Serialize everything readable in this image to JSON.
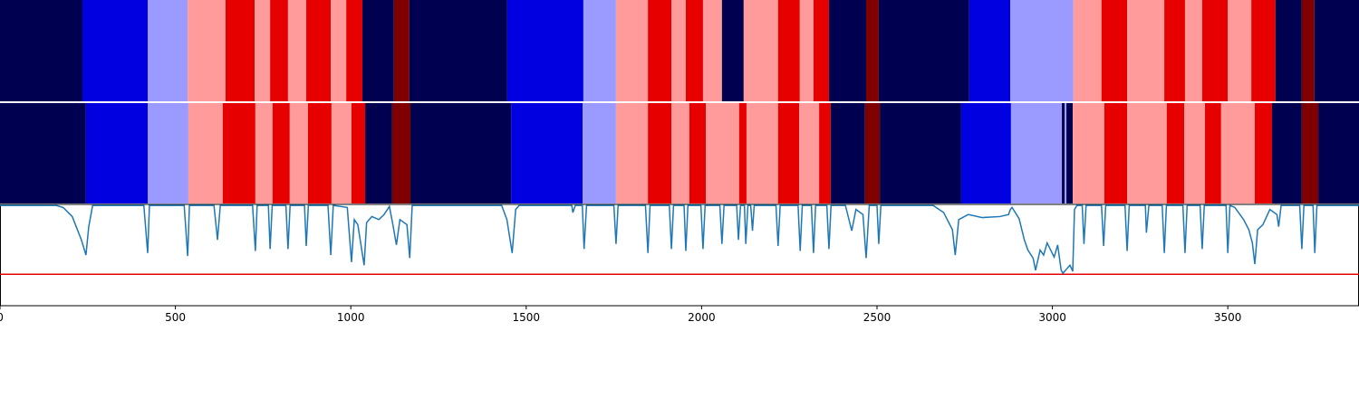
{
  "chart_data": {
    "type": "segmentation",
    "xlim": [
      0,
      3874
    ],
    "xticks": [
      0,
      500,
      1000,
      1500,
      2000,
      2500,
      3000,
      3500
    ],
    "rows": [
      {
        "starts": [
          0,
          235,
          421,
          535,
          643,
          726,
          770,
          821,
          873,
          943,
          987,
          1033,
          1123,
          1167,
          1446,
          1663,
          1756,
          1847,
          1914,
          1955,
          2004,
          2058,
          2120,
          2218,
          2280,
          2319,
          2363,
          2469,
          2505,
          2763,
          2880,
          3060,
          3140,
          3213,
          3319,
          3378,
          3427,
          3500,
          3567,
          3636,
          3711,
          3747
        ],
        "colors": [
          "#000050",
          "#0000e0",
          "#9b9bff",
          "#ff9b9b",
          "#e60000",
          "#ff9b9b",
          "#e60000",
          "#ff9b9b",
          "#e60000",
          "#ff9b9b",
          "#e60000",
          "#000050",
          "#800000",
          "#000050",
          "#0000e0",
          "#9b9bff",
          "#ff9b9b",
          "#e60000",
          "#ff9b9b",
          "#e60000",
          "#ff9b9b",
          "#000050",
          "#ff9b9b",
          "#e60000",
          "#ff9b9b",
          "#e60000",
          "#000050",
          "#800000",
          "#000050",
          "#0000e0",
          "#9b9bff",
          "#ff9b9b",
          "#e60000",
          "#ff9b9b",
          "#e60000",
          "#ff9b9b",
          "#e60000",
          "#ff9b9b",
          "#e60000",
          "#000050",
          "#800000",
          "#000050"
        ]
      },
      {
        "starts": [
          0,
          245,
          421,
          537,
          635,
          728,
          777,
          826,
          878,
          945,
          1002,
          1041,
          1118,
          1170,
          1457,
          1661,
          1756,
          1847,
          1914,
          1965,
          2012,
          2107,
          2128,
          2218,
          2278,
          2335,
          2368,
          2466,
          2508,
          2740,
          2882,
          3027,
          3035,
          3040,
          3058,
          3148,
          3213,
          3326,
          3376,
          3435,
          3481,
          3577,
          3626,
          3711,
          3758
        ],
        "colors": [
          "#000050",
          "#0000e0",
          "#9b9bff",
          "#ff9b9b",
          "#e60000",
          "#ff9b9b",
          "#e60000",
          "#ff9b9b",
          "#e60000",
          "#ff9b9b",
          "#e60000",
          "#000050",
          "#800000",
          "#000050",
          "#0000e0",
          "#9b9bff",
          "#ff9b9b",
          "#e60000",
          "#ff9b9b",
          "#e60000",
          "#ff9b9b",
          "#e60000",
          "#ff9b9b",
          "#e60000",
          "#ff9b9b",
          "#e60000",
          "#000050",
          "#800000",
          "#000050",
          "#0000e0",
          "#9b9bff",
          "#000050",
          "#9b9bff",
          "#000050",
          "#ff9b9b",
          "#e60000",
          "#ff9b9b",
          "#e60000",
          "#ff9b9b",
          "#e60000",
          "#ff9b9b",
          "#e60000",
          "#000050",
          "#800000",
          "#000050"
        ]
      }
    ],
    "line": {
      "color": "#1f77b4",
      "ylim": [
        0,
        1
      ],
      "threshold": 0.31,
      "threshold_color": "#e60000",
      "x": [
        0,
        160,
        180,
        206,
        232,
        245,
        253,
        264,
        410,
        421,
        426,
        525,
        535,
        540,
        610,
        620,
        628,
        720,
        728,
        733,
        765,
        770,
        776,
        815,
        821,
        827,
        868,
        873,
        879,
        935,
        943,
        950,
        990,
        1002,
        1010,
        1020,
        1038,
        1045,
        1060,
        1080,
        1095,
        1110,
        1120,
        1130,
        1140,
        1160,
        1168,
        1175,
        1430,
        1445,
        1460,
        1470,
        1480,
        1630,
        1633,
        1640,
        1660,
        1665,
        1672,
        1750,
        1756,
        1762,
        1840,
        1847,
        1853,
        1908,
        1914,
        1920,
        1950,
        1955,
        1961,
        1998,
        2004,
        2010,
        2052,
        2058,
        2064,
        2100,
        2105,
        2111,
        2122,
        2126,
        2132,
        2140,
        2145,
        2150,
        2212,
        2218,
        2224,
        2275,
        2281,
        2287,
        2313,
        2319,
        2325,
        2357,
        2363,
        2369,
        2410,
        2428,
        2440,
        2460,
        2469,
        2478,
        2500,
        2505,
        2511,
        2660,
        2690,
        2715,
        2723,
        2733,
        2760,
        2800,
        2850,
        2875,
        2880,
        2885,
        2905,
        2920,
        2930,
        2945,
        2952,
        2965,
        2975,
        2985,
        2995,
        3005,
        3015,
        3025,
        3030,
        3040,
        3050,
        3058,
        3063,
        3070,
        3085,
        3090,
        3096,
        3140,
        3146,
        3152,
        3207,
        3213,
        3219,
        3265,
        3268,
        3275,
        3313,
        3319,
        3325,
        3372,
        3378,
        3384,
        3421,
        3427,
        3433,
        3495,
        3500,
        3506,
        3520,
        3545,
        3560,
        3570,
        3577,
        3585,
        3600,
        3620,
        3640,
        3645,
        3652,
        3705,
        3711,
        3717,
        3743,
        3748,
        3754,
        3874
      ],
      "values": [
        0.99,
        0.99,
        0.97,
        0.88,
        0.65,
        0.5,
        0.78,
        0.99,
        0.99,
        0.52,
        0.99,
        0.99,
        0.49,
        0.99,
        0.99,
        0.65,
        0.99,
        0.99,
        0.54,
        0.99,
        0.99,
        0.56,
        0.99,
        0.99,
        0.56,
        0.99,
        0.99,
        0.59,
        0.99,
        0.99,
        0.5,
        0.99,
        0.97,
        0.43,
        0.85,
        0.8,
        0.4,
        0.82,
        0.88,
        0.85,
        0.9,
        0.98,
        0.8,
        0.6,
        0.85,
        0.8,
        0.47,
        0.99,
        0.99,
        0.85,
        0.52,
        0.95,
        0.99,
        0.99,
        0.92,
        0.99,
        0.99,
        0.56,
        0.99,
        0.99,
        0.61,
        0.99,
        0.99,
        0.52,
        0.99,
        0.99,
        0.56,
        0.99,
        0.99,
        0.54,
        0.99,
        0.99,
        0.56,
        0.99,
        0.99,
        0.61,
        0.99,
        0.99,
        0.65,
        0.99,
        0.99,
        0.61,
        0.99,
        0.99,
        0.74,
        0.99,
        0.99,
        0.59,
        0.99,
        0.99,
        0.54,
        0.99,
        0.99,
        0.52,
        0.99,
        0.99,
        0.56,
        0.99,
        0.99,
        0.74,
        0.95,
        0.9,
        0.47,
        0.99,
        0.99,
        0.61,
        0.99,
        0.99,
        0.92,
        0.75,
        0.5,
        0.85,
        0.9,
        0.87,
        0.88,
        0.9,
        0.95,
        0.97,
        0.86,
        0.65,
        0.55,
        0.47,
        0.35,
        0.55,
        0.5,
        0.62,
        0.55,
        0.48,
        0.6,
        0.35,
        0.32,
        0.36,
        0.4,
        0.34,
        0.95,
        0.99,
        0.99,
        0.61,
        0.99,
        0.99,
        0.59,
        0.99,
        0.99,
        0.54,
        0.99,
        0.99,
        0.72,
        0.99,
        0.99,
        0.52,
        0.99,
        0.99,
        0.52,
        0.99,
        0.99,
        0.56,
        0.99,
        0.99,
        0.52,
        0.99,
        0.97,
        0.85,
        0.75,
        0.62,
        0.41,
        0.75,
        0.8,
        0.95,
        0.9,
        0.78,
        0.99,
        0.99,
        0.56,
        0.99,
        0.99,
        0.52,
        0.99,
        0.99
      ]
    }
  }
}
